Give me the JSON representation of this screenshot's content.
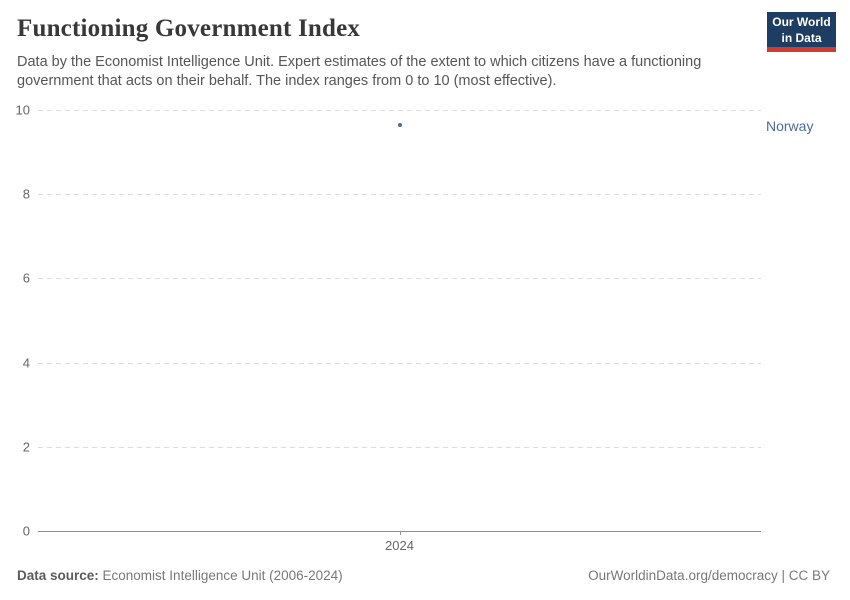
{
  "header": {
    "title": "Functioning Government Index",
    "subtitle": "Data by the Economist Intelligence Unit. Expert estimates of the extent to which citizens have a functioning government that acts on their behalf. The index ranges from 0 to 10 (most effective).",
    "logo": {
      "line1": "Our World",
      "line2": "in Data",
      "bg_color": "#1d3d63",
      "accent_color": "#cf3c32"
    }
  },
  "chart_data": {
    "type": "scatter",
    "title": "Functioning Government Index",
    "xlabel": "",
    "ylabel": "",
    "ylim": [
      0,
      10
    ],
    "yticks": [
      0,
      2,
      4,
      6,
      8,
      10
    ],
    "xticks": [
      "2024"
    ],
    "grid": "horizontal dashed",
    "legend_position": "right of point",
    "series": [
      {
        "name": "Norway",
        "color": "#4c6a9c",
        "points": [
          {
            "x": "2024",
            "y": 9.64
          }
        ]
      }
    ]
  },
  "footer": {
    "source_label": "Data source:",
    "source_value": " Economist Intelligence Unit (2006-2024)",
    "credit": "OurWorldinData.org/democracy | CC BY"
  }
}
